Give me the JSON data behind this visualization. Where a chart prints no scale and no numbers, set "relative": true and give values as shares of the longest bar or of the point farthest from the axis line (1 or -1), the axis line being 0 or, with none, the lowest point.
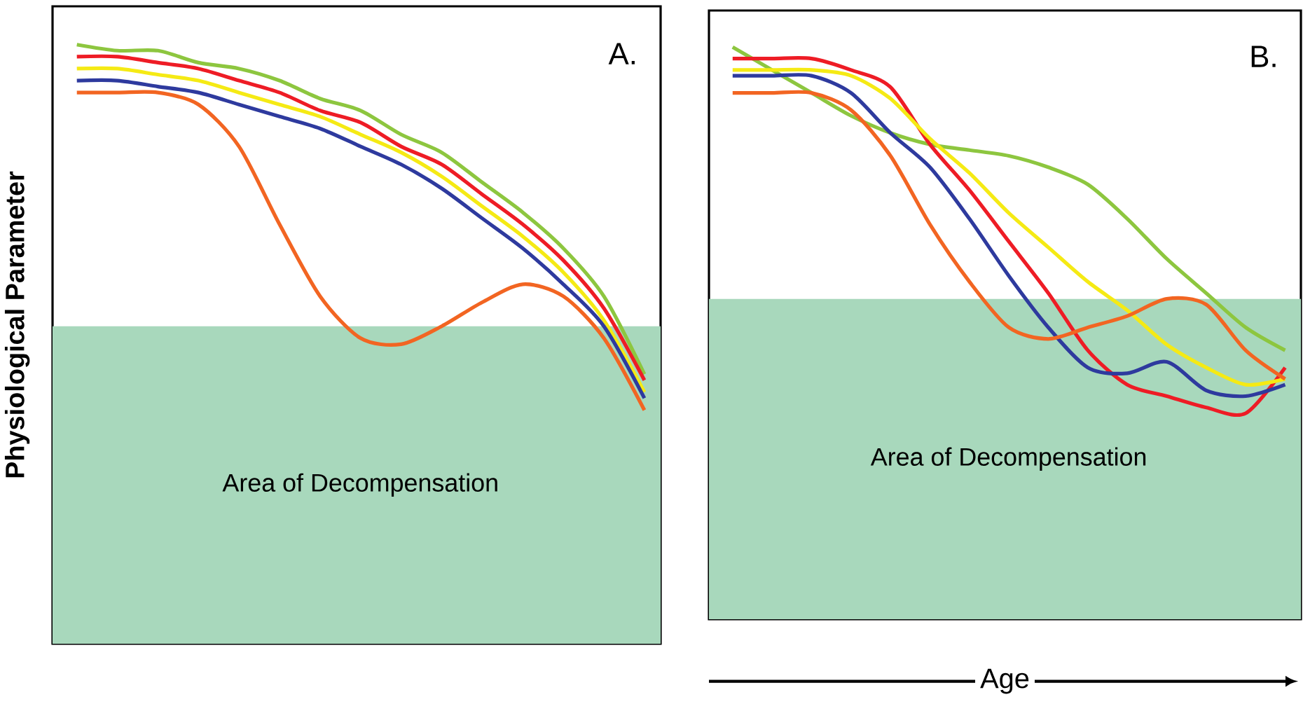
{
  "chart_data": [
    {
      "type": "line",
      "relative": true,
      "ylabel": "Physiological Parameter",
      "annotations": [
        "A."
      ],
      "categories": [
        null,
        null,
        null,
        null,
        null,
        null,
        null,
        null,
        null,
        null,
        null,
        null,
        null,
        null,
        null
      ],
      "bands": [
        {
          "axis": "y",
          "from": 0,
          "to": 0.53,
          "label": "Area of Decompensation",
          "color": "#a8d8bc"
        }
      ],
      "series": [
        {
          "color": "#8dc63f",
          "values": [
            1.0,
            0.99,
            0.99,
            0.97,
            0.96,
            0.94,
            0.91,
            0.89,
            0.85,
            0.82,
            0.77,
            0.72,
            0.66,
            0.58,
            0.45
          ]
        },
        {
          "color": "#ee1c25",
          "values": [
            0.98,
            0.98,
            0.97,
            0.96,
            0.94,
            0.92,
            0.89,
            0.87,
            0.83,
            0.8,
            0.75,
            0.7,
            0.64,
            0.56,
            0.44
          ]
        },
        {
          "color": "#f5ea14",
          "values": [
            0.96,
            0.96,
            0.95,
            0.94,
            0.92,
            0.9,
            0.88,
            0.85,
            0.82,
            0.78,
            0.73,
            0.68,
            0.62,
            0.54,
            0.42
          ]
        },
        {
          "color": "#2e3a9e",
          "values": [
            0.94,
            0.94,
            0.93,
            0.92,
            0.9,
            0.88,
            0.86,
            0.83,
            0.8,
            0.76,
            0.71,
            0.66,
            0.6,
            0.53,
            0.41
          ]
        },
        {
          "color": "#f26522",
          "values": [
            0.92,
            0.92,
            0.92,
            0.9,
            0.83,
            0.7,
            0.58,
            0.51,
            0.5,
            0.53,
            0.57,
            0.6,
            0.58,
            0.51,
            0.39
          ]
        }
      ]
    },
    {
      "type": "line",
      "relative": true,
      "xlabel": "Age",
      "annotations": [
        "B."
      ],
      "categories": [
        null,
        null,
        null,
        null,
        null,
        null,
        null,
        null,
        null,
        null,
        null,
        null,
        null,
        null,
        null
      ],
      "bands": [
        {
          "axis": "y",
          "from": 0,
          "to": 0.56,
          "label": "Area of Decompensation",
          "color": "#a8d8bc"
        }
      ],
      "series": [
        {
          "color": "#8dc63f",
          "values": [
            1.0,
            0.96,
            0.92,
            0.88,
            0.85,
            0.83,
            0.82,
            0.81,
            0.79,
            0.76,
            0.7,
            0.63,
            0.57,
            0.51,
            0.47
          ]
        },
        {
          "color": "#ee1c25",
          "values": [
            0.98,
            0.98,
            0.98,
            0.96,
            0.93,
            0.83,
            0.75,
            0.66,
            0.57,
            0.47,
            0.41,
            0.39,
            0.37,
            0.36,
            0.44
          ]
        },
        {
          "color": "#f5ea14",
          "values": [
            0.96,
            0.96,
            0.96,
            0.95,
            0.91,
            0.84,
            0.78,
            0.71,
            0.65,
            0.59,
            0.54,
            0.48,
            0.44,
            0.41,
            0.42
          ]
        },
        {
          "color": "#2e3a9e",
          "values": [
            0.95,
            0.95,
            0.95,
            0.92,
            0.85,
            0.79,
            0.7,
            0.6,
            0.51,
            0.44,
            0.43,
            0.45,
            0.4,
            0.39,
            0.41
          ]
        },
        {
          "color": "#f26522",
          "values": [
            0.92,
            0.92,
            0.92,
            0.89,
            0.81,
            0.69,
            0.59,
            0.51,
            0.49,
            0.51,
            0.53,
            0.56,
            0.55,
            0.47,
            0.42
          ]
        }
      ]
    }
  ]
}
